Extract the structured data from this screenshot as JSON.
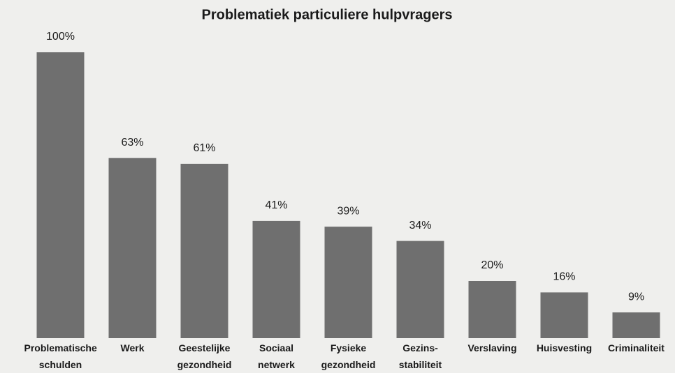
{
  "chart_data": {
    "type": "bar",
    "title": "Problematiek particuliere hulpvragers",
    "categories": [
      "Problematische schulden",
      "Werk",
      "Geestelijke gezondheid",
      "Sociaal netwerk",
      "Fysieke gezondheid",
      "Gezins-stabiliteit",
      "Verslaving",
      "Huisvesting",
      "Criminaliteit"
    ],
    "values": [
      100,
      63,
      61,
      41,
      39,
      34,
      20,
      16,
      9
    ],
    "value_labels": [
      "100%",
      "63%",
      "61%",
      "41%",
      "39%",
      "34%",
      "20%",
      "16%",
      "9%"
    ],
    "color": "#6f6f6f"
  }
}
